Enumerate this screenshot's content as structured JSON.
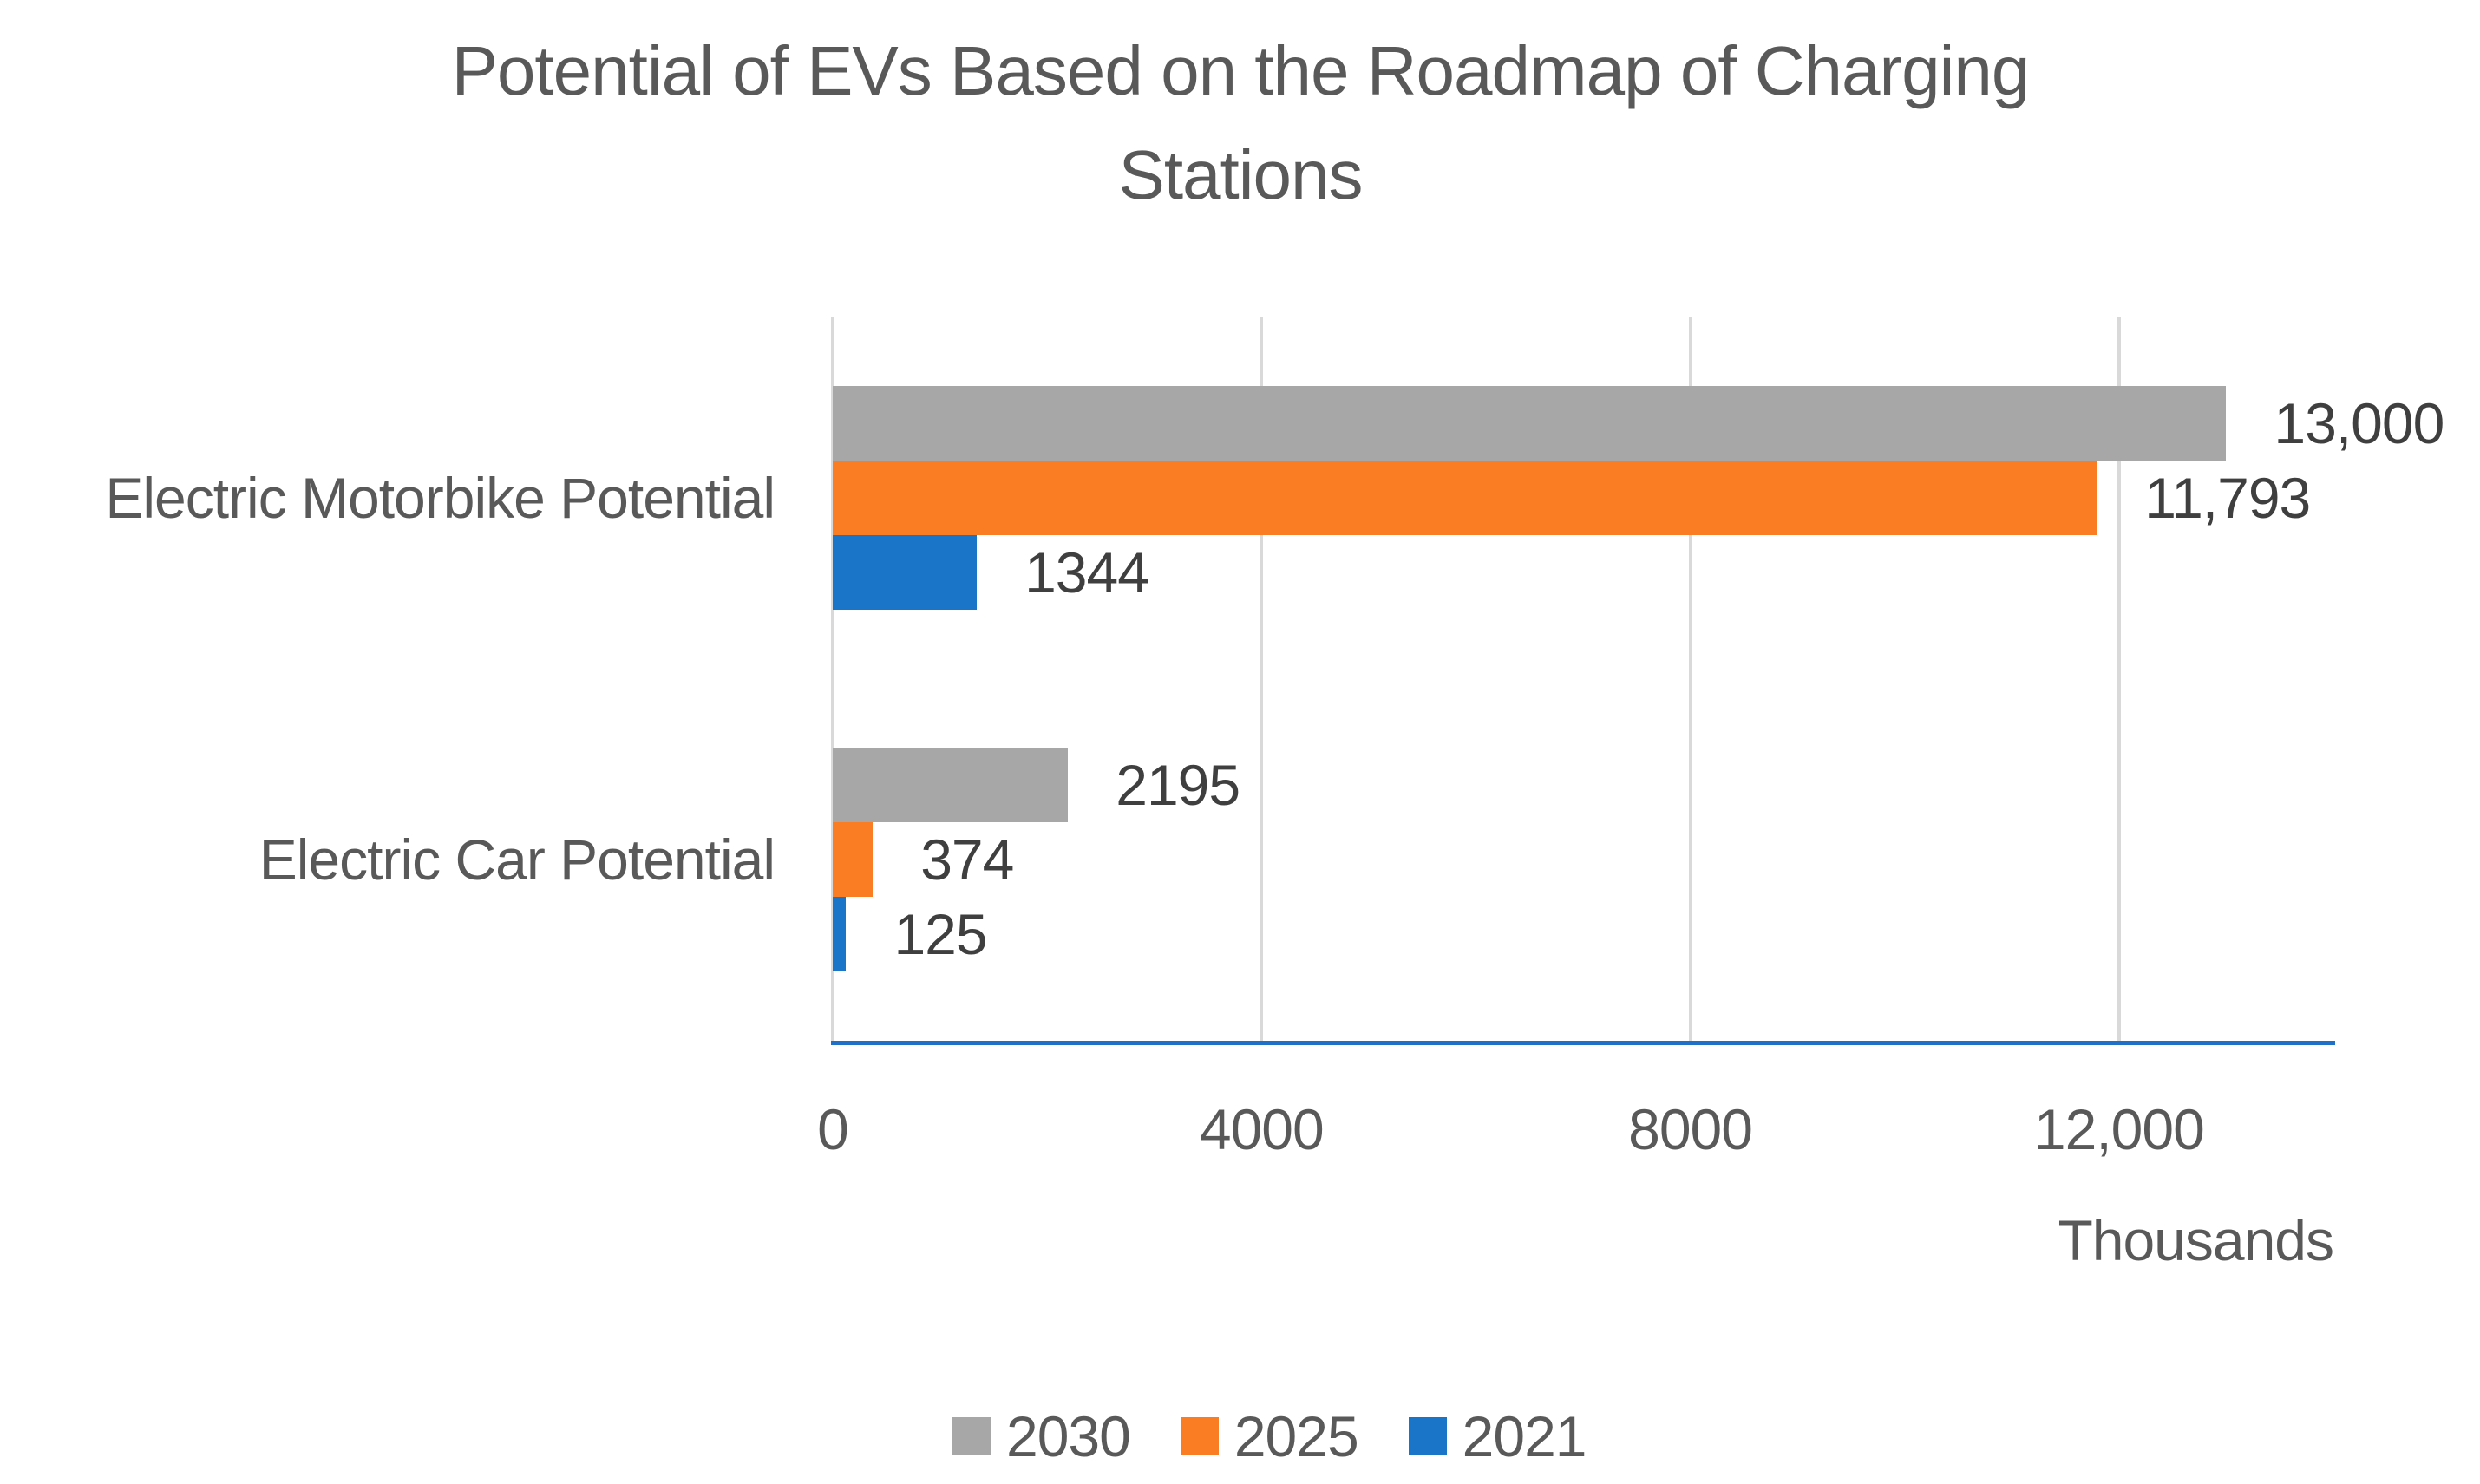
{
  "chart_data": {
    "type": "bar",
    "orientation": "horizontal",
    "title": "Potential of EVs Based on the Roadmap of Charging Stations",
    "categories": [
      "Electric Motorbike Potential",
      "Electric Car Potential"
    ],
    "series": [
      {
        "name": "2030",
        "color": "#A7A7A7",
        "values": [
          13000,
          2195
        ],
        "labels": [
          "13,000",
          "2195"
        ]
      },
      {
        "name": "2025",
        "color": "#FA7D23",
        "values": [
          11793,
          374
        ],
        "labels": [
          "11,793",
          "374"
        ]
      },
      {
        "name": "2021",
        "color": "#1A74C8",
        "values": [
          1344,
          125
        ],
        "labels": [
          "1344",
          "125"
        ]
      }
    ],
    "xlabel": "Thousands",
    "xlim": [
      0,
      14000
    ],
    "x_ticks": [
      {
        "value": 0,
        "label": "0"
      },
      {
        "value": 4000,
        "label": "4000"
      },
      {
        "value": 8000,
        "label": "8000"
      },
      {
        "value": 12000,
        "label": "12,000"
      }
    ],
    "grid": true,
    "legend_position": "bottom",
    "colors": {
      "gridline": "#D9D9D9",
      "axis_line": "#2170C7",
      "title_text": "#595959",
      "axis_text": "#595959",
      "data_label_text": "#3F3F3F"
    }
  }
}
